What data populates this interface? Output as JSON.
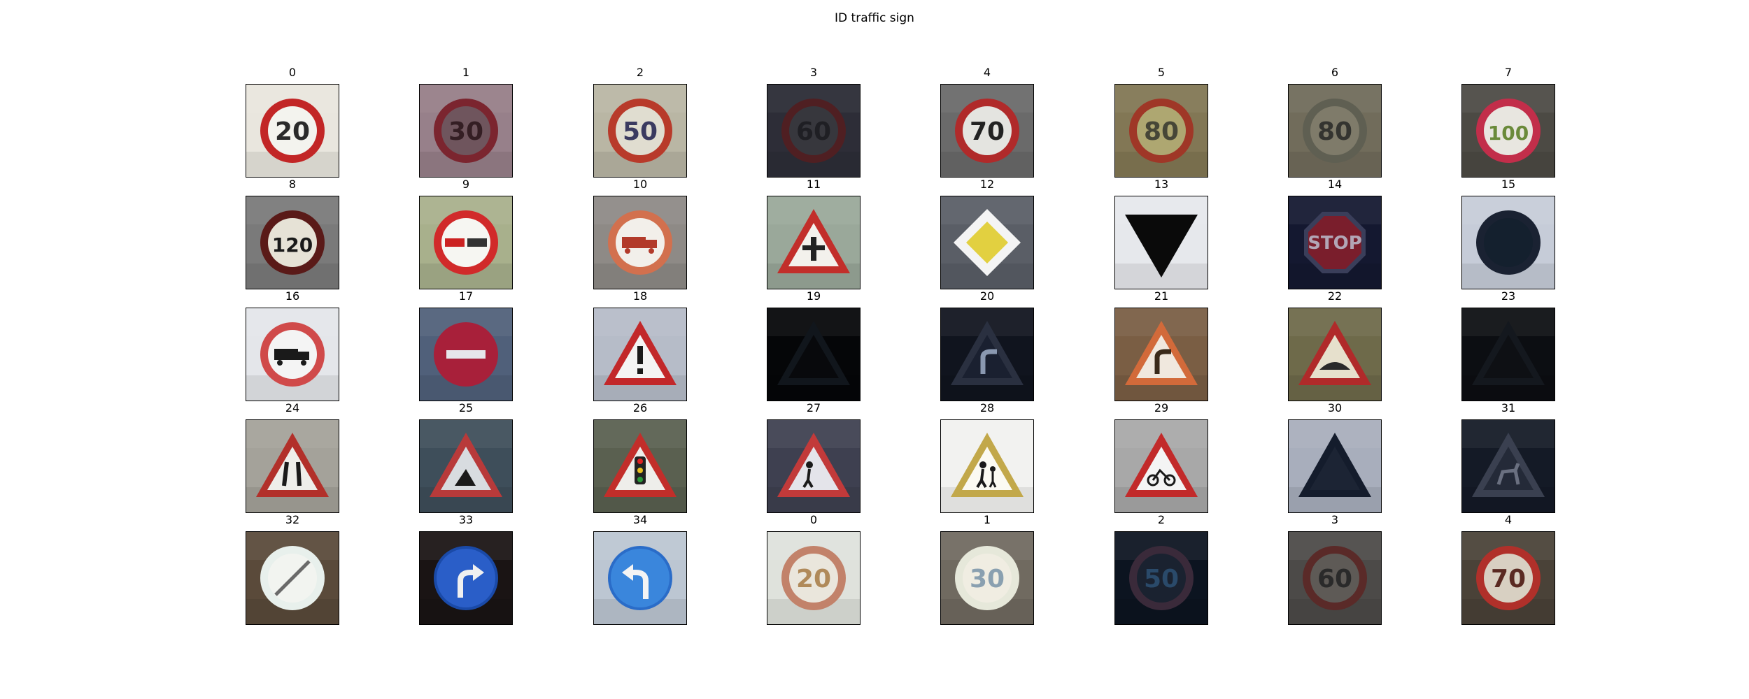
{
  "title": "ID traffic sign",
  "signs": [
    {
      "label": "0",
      "shape": "circle",
      "bg": "#e9e6de",
      "ring": "#c22626",
      "fill": "#f3f3ee",
      "sym": "20",
      "symc": "#2a2a2a",
      "dim": 0
    },
    {
      "label": "1",
      "shape": "circle",
      "bg": "#a98f9a",
      "ring": "#8a2a35",
      "fill": "#7c5f68",
      "sym": "30",
      "symc": "#3a2228",
      "dim": 0.1
    },
    {
      "label": "2",
      "shape": "circle",
      "bg": "#b9b6a4",
      "ring": "#b83a2a",
      "fill": "#e0ddd0",
      "sym": "50",
      "symc": "#3a3a60",
      "dim": 0
    },
    {
      "label": "3",
      "shape": "circle",
      "bg": "#3c3d4a",
      "ring": "#6a2a2e",
      "fill": "#4a4a52",
      "sym": "60",
      "symc": "#2a2a30",
      "dim": 0.25
    },
    {
      "label": "4",
      "shape": "circle",
      "bg": "#6a6a6a",
      "ring": "#b02a2a",
      "fill": "#e4e4e0",
      "sym": "70",
      "symc": "#222222",
      "dim": 0
    },
    {
      "label": "5",
      "shape": "circle",
      "bg": "#8a7e5a",
      "ring": "#a83a2a",
      "fill": "#b8b078",
      "sym": "80",
      "symc": "#4a4a3a",
      "dim": 0.05
    },
    {
      "label": "6",
      "shape": "circle",
      "bg": "#7e7966",
      "ring": "#6a6a5c",
      "fill": "#8e8a76",
      "sym": "80",
      "symc": "#3a3a36",
      "dim": 0.1
    },
    {
      "label": "7",
      "shape": "circle",
      "bg": "#4c4a44",
      "ring": "#c22e4a",
      "fill": "#e8e6e0",
      "sym": "100",
      "symc": "#6a8a3a",
      "dim": 0
    },
    {
      "label": "8",
      "shape": "circle",
      "bg": "#7a7a7a",
      "ring": "#5a1a18",
      "fill": "#e6e2d6",
      "sym": "120",
      "symc": "#1a1a1a",
      "dim": 0
    },
    {
      "label": "9",
      "shape": "circle",
      "bg": "#a8b08c",
      "ring": "#d12a2a",
      "fill": "#f6f6f2",
      "sym": "cars",
      "symc": "#d12a2a",
      "dim": 0
    },
    {
      "label": "10",
      "shape": "circle",
      "bg": "#8e8a86",
      "ring": "#d2704e",
      "fill": "#f2efea",
      "sym": "truck",
      "symc": "#b23a2a",
      "dim": 0
    },
    {
      "label": "11",
      "shape": "triangle",
      "bg": "#9aa89a",
      "ring": "#c22e2a",
      "fill": "#f3f1ec",
      "sym": "cross",
      "symc": "#222222",
      "dim": 0
    },
    {
      "label": "12",
      "shape": "diamond",
      "bg": "#5a5e66",
      "ring": "#f4f4f4",
      "fill": "#e2d040",
      "sym": "",
      "symc": "#000000",
      "dim": 0
    },
    {
      "label": "13",
      "shape": "yield",
      "bg": "#e6e8ec",
      "ring": "#0a0a0a",
      "fill": "#0a0a0a",
      "sym": "",
      "symc": "#000000",
      "dim": 0
    },
    {
      "label": "14",
      "shape": "octagon",
      "bg": "#141830",
      "ring": "#3a3e5a",
      "fill": "#7a1e2c",
      "sym": "STOP",
      "symc": "#b2a6b6",
      "dim": 0
    },
    {
      "label": "15",
      "shape": "circle",
      "bg": "#c6ccd8",
      "ring": "#1a2232",
      "fill": "#14202e",
      "sym": "",
      "symc": "#000000",
      "dim": 0
    },
    {
      "label": "16",
      "shape": "circle",
      "bg": "#e4e6ea",
      "ring": "#d04a4a",
      "fill": "#f4f4f4",
      "sym": "truck",
      "symc": "#1a1a1a",
      "dim": 0
    },
    {
      "label": "17",
      "shape": "circle",
      "bg": "#50607a",
      "ring": "#a8203a",
      "fill": "#a8203a",
      "sym": "bar",
      "symc": "#e6e6ea",
      "dim": 0
    },
    {
      "label": "18",
      "shape": "triangle",
      "bg": "#b6bcc8",
      "ring": "#c2282a",
      "fill": "#f4f4f4",
      "sym": "!",
      "symc": "#1a1a1a",
      "dim": 0
    },
    {
      "label": "19",
      "shape": "triangle",
      "bg": "#050608",
      "ring": "#11161c",
      "fill": "#08090c",
      "sym": "",
      "symc": "#000000",
      "dim": 0
    },
    {
      "label": "20",
      "shape": "triangle",
      "bg": "#10141e",
      "ring": "#2a3040",
      "fill": "#1a2030",
      "sym": "curve",
      "symc": "#8a98b0",
      "dim": 0
    },
    {
      "label": "21",
      "shape": "triangle",
      "bg": "#7a5e44",
      "ring": "#d26a3a",
      "fill": "#f0e8de",
      "sym": "curve",
      "symc": "#3a2a1a",
      "dim": 0
    },
    {
      "label": "22",
      "shape": "triangle",
      "bg": "#6e6a4a",
      "ring": "#b02a2a",
      "fill": "#e6e0cc",
      "sym": "bump",
      "symc": "#2a2a2a",
      "dim": 0
    },
    {
      "label": "23",
      "shape": "triangle",
      "bg": "#0c0e12",
      "ring": "#14181e",
      "fill": "#0e1014",
      "sym": "",
      "symc": "#000000",
      "dim": 0
    },
    {
      "label": "24",
      "shape": "triangle",
      "bg": "#a4a29a",
      "ring": "#b2302a",
      "fill": "#eeeeea",
      "sym": "narrow",
      "symc": "#1a1a1a",
      "dim": 0
    },
    {
      "label": "25",
      "shape": "triangle",
      "bg": "#3e4e5a",
      "ring": "#b83a3a",
      "fill": "#d8dce0",
      "sym": "work",
      "symc": "#1a1a1a",
      "dim": 0
    },
    {
      "label": "26",
      "shape": "triangle",
      "bg": "#5a6050",
      "ring": "#c22e2a",
      "fill": "#eeeeea",
      "sym": "light",
      "symc": "#1a1a1a",
      "dim": 0
    },
    {
      "label": "27",
      "shape": "triangle",
      "bg": "#3e4050",
      "ring": "#c23a3a",
      "fill": "#e4e4ea",
      "sym": "ped",
      "symc": "#1a1a1a",
      "dim": 0
    },
    {
      "label": "28",
      "shape": "triangle",
      "bg": "#f2f2f0",
      "ring": "#c2a84a",
      "fill": "#fbfaf2",
      "sym": "kids",
      "symc": "#1a1a1a",
      "dim": 0
    },
    {
      "label": "29",
      "shape": "triangle",
      "bg": "#a8a8a8",
      "ring": "#c22a2a",
      "fill": "#f4f4f4",
      "sym": "bike",
      "symc": "#1a1a1a",
      "dim": 0
    },
    {
      "label": "30",
      "shape": "triangle",
      "bg": "#a8aebc",
      "ring": "#141c2c",
      "fill": "#1c2434",
      "sym": "",
      "symc": "#000000",
      "dim": 0
    },
    {
      "label": "31",
      "shape": "triangle",
      "bg": "#141a26",
      "ring": "#3a4050",
      "fill": "#242a38",
      "sym": "deer",
      "symc": "#6a7080",
      "dim": 0
    },
    {
      "label": "32",
      "shape": "circle",
      "bg": "#5a4a3a",
      "ring": "#e8f0ec",
      "fill": "#f2f4f0",
      "sym": "end",
      "symc": "#6a6a6a",
      "dim": 0
    },
    {
      "label": "33",
      "shape": "bluecircle",
      "bg": "#1a1414",
      "ring": "#1a4aa8",
      "fill": "#2a5ec8",
      "sym": "right",
      "symc": "#f0f0f0",
      "dim": 0
    },
    {
      "label": "34",
      "shape": "bluecircle",
      "bg": "#bcc6d2",
      "ring": "#2a6cc8",
      "fill": "#3a86dc",
      "sym": "left",
      "symc": "#f4f4f4",
      "dim": 0
    },
    {
      "label": "0",
      "shape": "circle",
      "bg": "#dfe2dc",
      "ring": "#c2826a",
      "fill": "#eae6dc",
      "sym": "20",
      "symc": "#b08a5a",
      "dim": 0
    },
    {
      "label": "1",
      "shape": "circle",
      "bg": "#706a60",
      "ring": "#e6e8da",
      "fill": "#f0ede2",
      "sym": "30",
      "symc": "#8aa0b0",
      "dim": 0
    },
    {
      "label": "2",
      "shape": "circle",
      "bg": "#0c1420",
      "ring": "#3a2a3a",
      "fill": "#1a2230",
      "sym": "50",
      "symc": "#2a4a6a",
      "dim": 0
    },
    {
      "label": "3",
      "shape": "circle",
      "bg": "#4c4a48",
      "ring": "#5a2a28",
      "fill": "#5e5a56",
      "sym": "60",
      "symc": "#2a2a2a",
      "dim": 0
    },
    {
      "label": "4",
      "shape": "circle",
      "bg": "#4a4238",
      "ring": "#b0302a",
      "fill": "#d8d0c2",
      "sym": "70",
      "symc": "#5a2a22",
      "dim": 0
    }
  ]
}
